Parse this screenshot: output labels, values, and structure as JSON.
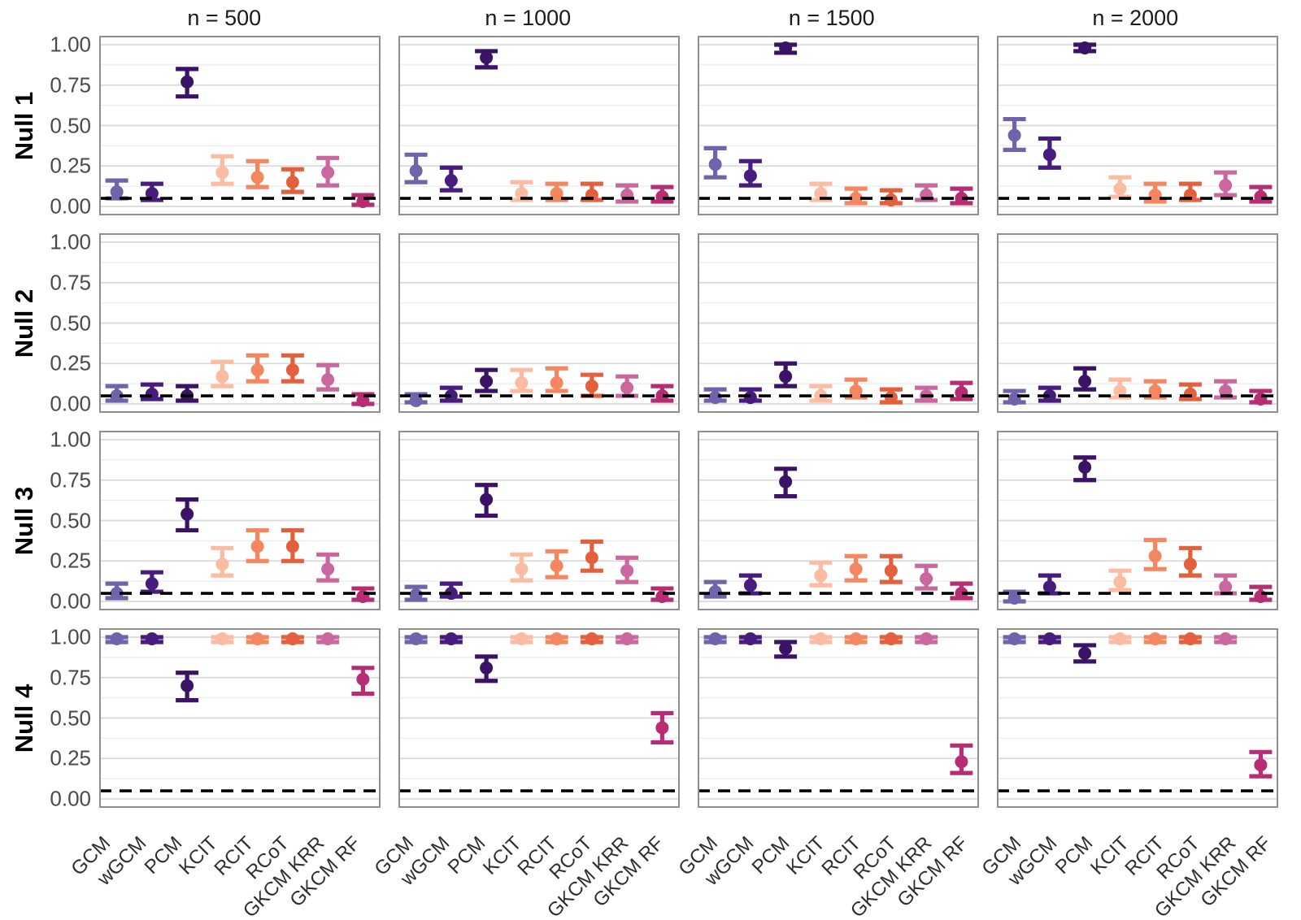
{
  "chart_data": {
    "type": "scatter",
    "subtype": "pointrange-facet-grid",
    "col_titles": [
      "n = 500",
      "n = 1000",
      "n = 1500",
      "n = 2000"
    ],
    "row_labels": [
      "Null 1",
      "Null 2",
      "Null 3",
      "Null 4"
    ],
    "methods": [
      "GCM",
      "wGCM",
      "PCM",
      "KCIT",
      "RCIT",
      "RCoT",
      "GKCM KRR",
      "GKCM RF"
    ],
    "method_colors": [
      "#7163AB",
      "#471C7E",
      "#3A1266",
      "#FBBCA2",
      "#F4875F",
      "#E2603B",
      "#C9679E",
      "#B72D74"
    ],
    "y_tick_labels": [
      "1.00",
      "0.75",
      "0.50",
      "0.25",
      "0.00"
    ],
    "y_tick_values": [
      1.0,
      0.75,
      0.5,
      0.25,
      0.0
    ],
    "ylim": [
      0,
      1
    ],
    "grid": {
      "on": true,
      "major_values": [
        0,
        0.25,
        0.5,
        0.75,
        1.0
      ],
      "minor_values": [
        0.125,
        0.375,
        0.625,
        0.875
      ]
    },
    "reference_line": {
      "value": 0.05,
      "color": "#000000",
      "style": "dashed"
    },
    "legend": "none",
    "panels": [
      {
        "row": "Null 1",
        "col": "n = 500",
        "points": [
          [
            0.09,
            0.05,
            0.16
          ],
          [
            0.08,
            0.04,
            0.14
          ],
          [
            0.77,
            0.68,
            0.85
          ],
          [
            0.21,
            0.14,
            0.31
          ],
          [
            0.18,
            0.12,
            0.28
          ],
          [
            0.15,
            0.09,
            0.23
          ],
          [
            0.21,
            0.13,
            0.3
          ],
          [
            0.03,
            0.01,
            0.07
          ]
        ]
      },
      {
        "row": "Null 1",
        "col": "n = 1000",
        "points": [
          [
            0.22,
            0.15,
            0.32
          ],
          [
            0.16,
            0.1,
            0.24
          ],
          [
            0.92,
            0.86,
            0.96
          ],
          [
            0.08,
            0.04,
            0.15
          ],
          [
            0.08,
            0.04,
            0.14
          ],
          [
            0.07,
            0.04,
            0.14
          ],
          [
            0.07,
            0.03,
            0.13
          ],
          [
            0.06,
            0.03,
            0.12
          ]
        ]
      },
      {
        "row": "Null 1",
        "col": "n = 1500",
        "points": [
          [
            0.26,
            0.18,
            0.36
          ],
          [
            0.19,
            0.13,
            0.28
          ],
          [
            0.98,
            0.95,
            1.0
          ],
          [
            0.08,
            0.04,
            0.14
          ],
          [
            0.05,
            0.02,
            0.11
          ],
          [
            0.04,
            0.02,
            0.1
          ],
          [
            0.07,
            0.04,
            0.13
          ],
          [
            0.05,
            0.02,
            0.11
          ]
        ]
      },
      {
        "row": "Null 1",
        "col": "n = 2000",
        "points": [
          [
            0.44,
            0.35,
            0.54
          ],
          [
            0.32,
            0.24,
            0.42
          ],
          [
            0.98,
            0.96,
            1.0
          ],
          [
            0.11,
            0.06,
            0.18
          ],
          [
            0.07,
            0.03,
            0.14
          ],
          [
            0.07,
            0.04,
            0.14
          ],
          [
            0.13,
            0.07,
            0.21
          ],
          [
            0.06,
            0.03,
            0.12
          ]
        ]
      },
      {
        "row": "Null 2",
        "col": "n = 500",
        "points": [
          [
            0.05,
            0.02,
            0.11
          ],
          [
            0.06,
            0.03,
            0.12
          ],
          [
            0.05,
            0.02,
            0.11
          ],
          [
            0.17,
            0.11,
            0.26
          ],
          [
            0.21,
            0.14,
            0.3
          ],
          [
            0.21,
            0.14,
            0.3
          ],
          [
            0.15,
            0.09,
            0.24
          ],
          [
            0.02,
            0.0,
            0.06
          ]
        ]
      },
      {
        "row": "Null 2",
        "col": "n = 1000",
        "points": [
          [
            0.02,
            0.01,
            0.06
          ],
          [
            0.05,
            0.02,
            0.1
          ],
          [
            0.14,
            0.08,
            0.21
          ],
          [
            0.13,
            0.08,
            0.21
          ],
          [
            0.13,
            0.08,
            0.22
          ],
          [
            0.11,
            0.05,
            0.18
          ],
          [
            0.1,
            0.05,
            0.17
          ],
          [
            0.05,
            0.02,
            0.11
          ]
        ]
      },
      {
        "row": "Null 2",
        "col": "n = 1500",
        "points": [
          [
            0.04,
            0.02,
            0.09
          ],
          [
            0.04,
            0.02,
            0.09
          ],
          [
            0.17,
            0.11,
            0.25
          ],
          [
            0.05,
            0.02,
            0.11
          ],
          [
            0.08,
            0.04,
            0.15
          ],
          [
            0.04,
            0.01,
            0.09
          ],
          [
            0.05,
            0.02,
            0.1
          ],
          [
            0.07,
            0.03,
            0.13
          ]
        ]
      },
      {
        "row": "Null 2",
        "col": "n = 2000",
        "points": [
          [
            0.03,
            0.01,
            0.08
          ],
          [
            0.05,
            0.02,
            0.1
          ],
          [
            0.14,
            0.09,
            0.22
          ],
          [
            0.08,
            0.04,
            0.15
          ],
          [
            0.08,
            0.04,
            0.14
          ],
          [
            0.06,
            0.03,
            0.12
          ],
          [
            0.08,
            0.04,
            0.14
          ],
          [
            0.03,
            0.01,
            0.08
          ]
        ]
      },
      {
        "row": "Null 3",
        "col": "n = 500",
        "points": [
          [
            0.05,
            0.02,
            0.11
          ],
          [
            0.11,
            0.06,
            0.18
          ],
          [
            0.54,
            0.44,
            0.63
          ],
          [
            0.23,
            0.16,
            0.33
          ],
          [
            0.34,
            0.25,
            0.44
          ],
          [
            0.34,
            0.25,
            0.44
          ],
          [
            0.2,
            0.13,
            0.29
          ],
          [
            0.03,
            0.01,
            0.08
          ]
        ]
      },
      {
        "row": "Null 3",
        "col": "n = 1000",
        "points": [
          [
            0.04,
            0.01,
            0.09
          ],
          [
            0.05,
            0.03,
            0.11
          ],
          [
            0.63,
            0.53,
            0.72
          ],
          [
            0.2,
            0.13,
            0.29
          ],
          [
            0.22,
            0.15,
            0.31
          ],
          [
            0.27,
            0.19,
            0.37
          ],
          [
            0.19,
            0.12,
            0.27
          ],
          [
            0.03,
            0.01,
            0.08
          ]
        ]
      },
      {
        "row": "Null 3",
        "col": "n = 1500",
        "points": [
          [
            0.06,
            0.03,
            0.12
          ],
          [
            0.1,
            0.05,
            0.16
          ],
          [
            0.74,
            0.65,
            0.82
          ],
          [
            0.16,
            0.1,
            0.24
          ],
          [
            0.2,
            0.13,
            0.28
          ],
          [
            0.19,
            0.12,
            0.28
          ],
          [
            0.14,
            0.08,
            0.22
          ],
          [
            0.05,
            0.02,
            0.11
          ]
        ]
      },
      {
        "row": "Null 3",
        "col": "n = 2000",
        "points": [
          [
            0.02,
            0.0,
            0.06
          ],
          [
            0.09,
            0.05,
            0.16
          ],
          [
            0.83,
            0.75,
            0.89
          ],
          [
            0.12,
            0.07,
            0.19
          ],
          [
            0.28,
            0.2,
            0.38
          ],
          [
            0.23,
            0.16,
            0.33
          ],
          [
            0.09,
            0.05,
            0.16
          ],
          [
            0.03,
            0.01,
            0.09
          ]
        ]
      },
      {
        "row": "Null 4",
        "col": "n = 500",
        "points": [
          [
            0.99,
            0.97,
            1.0
          ],
          [
            0.99,
            0.97,
            1.0
          ],
          [
            0.7,
            0.61,
            0.78
          ],
          [
            0.99,
            0.97,
            1.0
          ],
          [
            0.99,
            0.97,
            1.0
          ],
          [
            0.99,
            0.97,
            1.0
          ],
          [
            0.99,
            0.97,
            1.0
          ],
          [
            0.74,
            0.65,
            0.81
          ]
        ]
      },
      {
        "row": "Null 4",
        "col": "n = 1000",
        "points": [
          [
            0.99,
            0.97,
            1.0
          ],
          [
            0.99,
            0.97,
            1.0
          ],
          [
            0.81,
            0.73,
            0.88
          ],
          [
            0.99,
            0.97,
            1.0
          ],
          [
            0.99,
            0.97,
            1.0
          ],
          [
            0.99,
            0.97,
            1.0
          ],
          [
            0.99,
            0.97,
            1.0
          ],
          [
            0.44,
            0.35,
            0.53
          ]
        ]
      },
      {
        "row": "Null 4",
        "col": "n = 1500",
        "points": [
          [
            0.99,
            0.97,
            1.0
          ],
          [
            0.99,
            0.97,
            1.0
          ],
          [
            0.93,
            0.88,
            0.97
          ],
          [
            0.99,
            0.97,
            1.0
          ],
          [
            0.99,
            0.97,
            1.0
          ],
          [
            0.99,
            0.97,
            1.0
          ],
          [
            0.99,
            0.97,
            1.0
          ],
          [
            0.23,
            0.16,
            0.33
          ]
        ]
      },
      {
        "row": "Null 4",
        "col": "n = 2000",
        "points": [
          [
            0.99,
            0.97,
            1.0
          ],
          [
            0.99,
            0.97,
            1.0
          ],
          [
            0.9,
            0.85,
            0.95
          ],
          [
            0.99,
            0.97,
            1.0
          ],
          [
            0.99,
            0.97,
            1.0
          ],
          [
            0.99,
            0.97,
            1.0
          ],
          [
            0.99,
            0.97,
            1.0
          ],
          [
            0.21,
            0.14,
            0.29
          ]
        ]
      }
    ]
  },
  "styles": {
    "background": "#ffffff",
    "panel_border": "#8f8f8f",
    "grid_major": "#d9d9d9",
    "grid_minor": "#ececec",
    "title_text": "#1b1b1b",
    "tick_text": "#4a4a4a",
    "row_label_text": "#000000"
  }
}
